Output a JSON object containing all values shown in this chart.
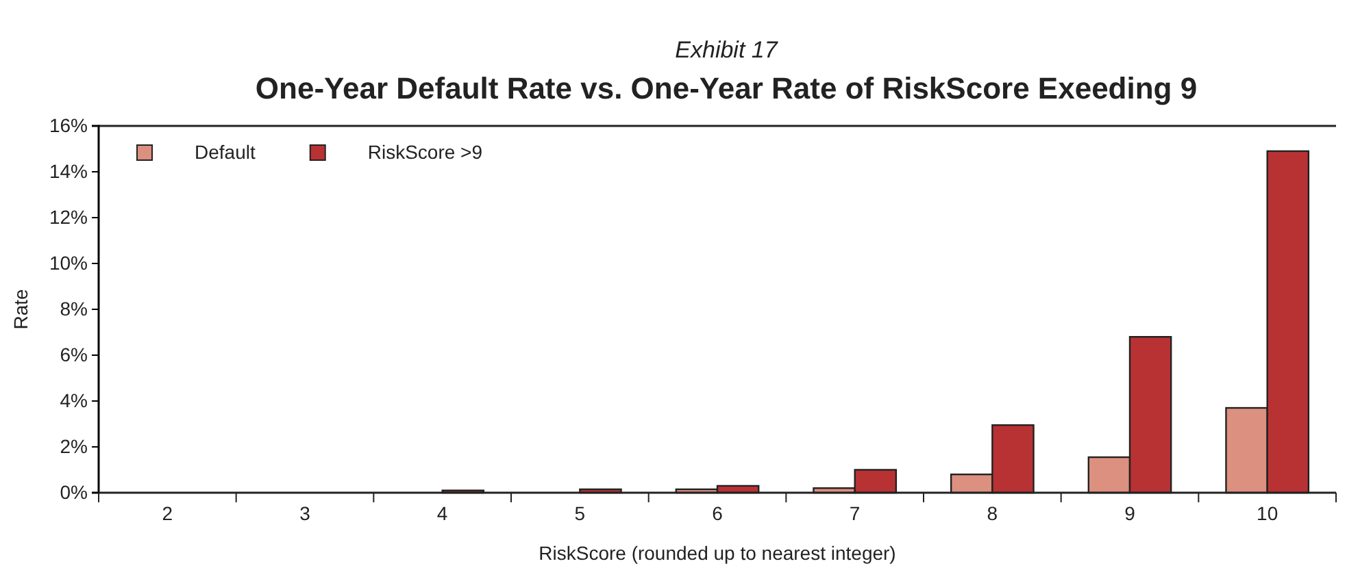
{
  "chart_data": {
    "type": "bar",
    "title": "One-Year Default Rate vs. One-Year Rate of RiskScore Exeeding 9",
    "subtitle": "Exhibit 17",
    "xlabel": "RiskScore (rounded up to nearest integer)",
    "ylabel": "Rate",
    "categories": [
      "2",
      "3",
      "4",
      "5",
      "6",
      "7",
      "8",
      "9",
      "10"
    ],
    "series": [
      {
        "name": "Default",
        "color": "#dc9080",
        "values": [
          0,
          0,
          null,
          null,
          0.15,
          0.2,
          0.8,
          1.55,
          3.7
        ]
      },
      {
        "name": "RiskScore >9",
        "color": "#b83234",
        "values": [
          0,
          0,
          0.1,
          0.15,
          0.3,
          1.0,
          2.95,
          6.8,
          14.9
        ]
      }
    ],
    "ylim": [
      0,
      16
    ],
    "yticks": [
      {
        "value": 0,
        "label": "0%"
      },
      {
        "value": 2,
        "label": "2%"
      },
      {
        "value": 4,
        "label": "4%"
      },
      {
        "value": 6,
        "label": "6%"
      },
      {
        "value": 8,
        "label": "8%"
      },
      {
        "value": 10,
        "label": "10%"
      },
      {
        "value": 12,
        "label": "12%"
      },
      {
        "value": 14,
        "label": "14%"
      },
      {
        "value": 16,
        "label": "16%"
      }
    ],
    "legend": "top left",
    "grid": false
  }
}
